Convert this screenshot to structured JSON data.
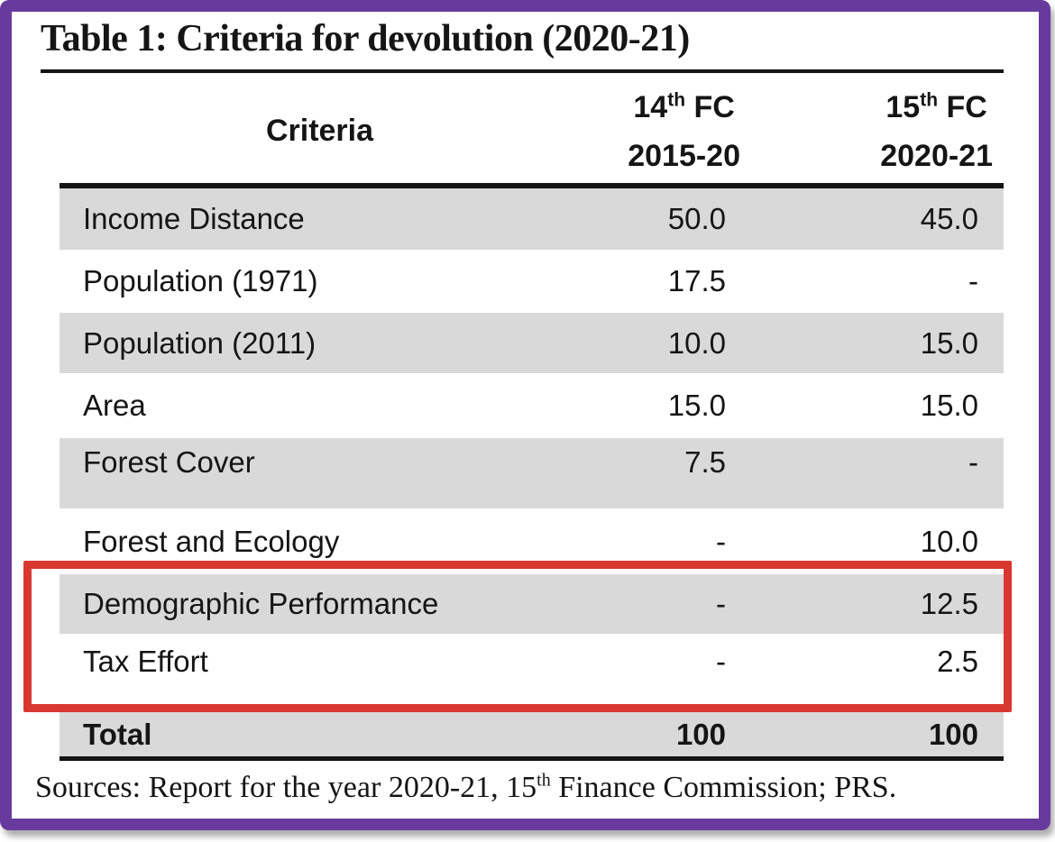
{
  "colors": {
    "frame_purple": "#693A9E",
    "highlight_red": "#D93831",
    "row_shade_gray": "#D9D9D9",
    "text_black": "#151515"
  },
  "document": {
    "title": "Table 1: Criteria for devolution (2020-21)",
    "sources": {
      "prefix": "Sources: Report for the year 2020-21, 15",
      "sup": "th",
      "suffix": " Finance Commission; PRS."
    }
  },
  "table": {
    "header": {
      "criteria_label": "Criteria",
      "col_14fc": {
        "num": "14",
        "sup": "th",
        "rest": " FC",
        "period": "2015-20"
      },
      "col_15fc": {
        "num": "15",
        "sup": "th",
        "rest": " FC",
        "period": "2020-21"
      }
    },
    "rows": [
      {
        "label": "Income Distance",
        "fc14": "50.0",
        "fc15": "45.0"
      },
      {
        "label": "Population (1971)",
        "fc14": "17.5",
        "fc15": "-"
      },
      {
        "label": "Population (2011)",
        "fc14": "10.0",
        "fc15": "15.0"
      },
      {
        "label": "Area",
        "fc14": "15.0",
        "fc15": "15.0"
      },
      {
        "label": "Forest Cover",
        "fc14": "7.5",
        "fc15": "-"
      },
      {
        "label": "Forest and Ecology",
        "fc14": "-",
        "fc15": "10.0"
      },
      {
        "label": "Demographic Performance",
        "fc14": "-",
        "fc15": "12.5"
      },
      {
        "label": "Tax Effort",
        "fc14": "-",
        "fc15": "2.5"
      },
      {
        "label": "Total",
        "fc14": "100",
        "fc15": "100"
      }
    ]
  }
}
